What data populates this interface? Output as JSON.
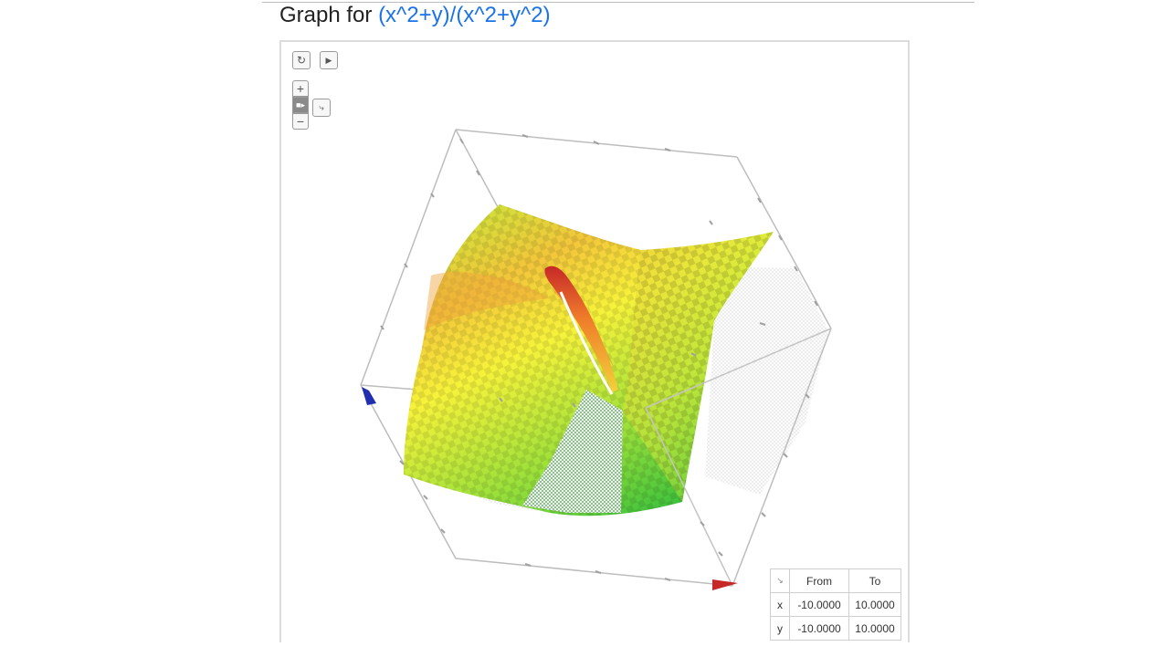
{
  "header": {
    "prefix": "Graph for",
    "function": "(x^2+y)/(x^2+y^2)"
  },
  "controls": {
    "reset_icon": "refresh-icon",
    "play_icon": "play-icon",
    "zoom_in": "+",
    "zoom_out": "−",
    "camera_icon": "camera-icon",
    "axes_icon": "axes-icon"
  },
  "range_table": {
    "corner_icon": "↘",
    "from_label": "From",
    "to_label": "To",
    "rows": [
      {
        "var": "x",
        "from": "-10.0000",
        "to": "10.0000",
        "color": "#d32f2f"
      },
      {
        "var": "y",
        "from": "-10.0000",
        "to": "10.0000",
        "color": "#2e9e2e"
      }
    ]
  },
  "colors": {
    "link": "#1a73e8",
    "surface_high": "#e53935",
    "surface_mid": "#f6f23a",
    "surface_low": "#3cc13c",
    "x_axis": "#c62828",
    "z_axis": "#1f2fb0"
  }
}
